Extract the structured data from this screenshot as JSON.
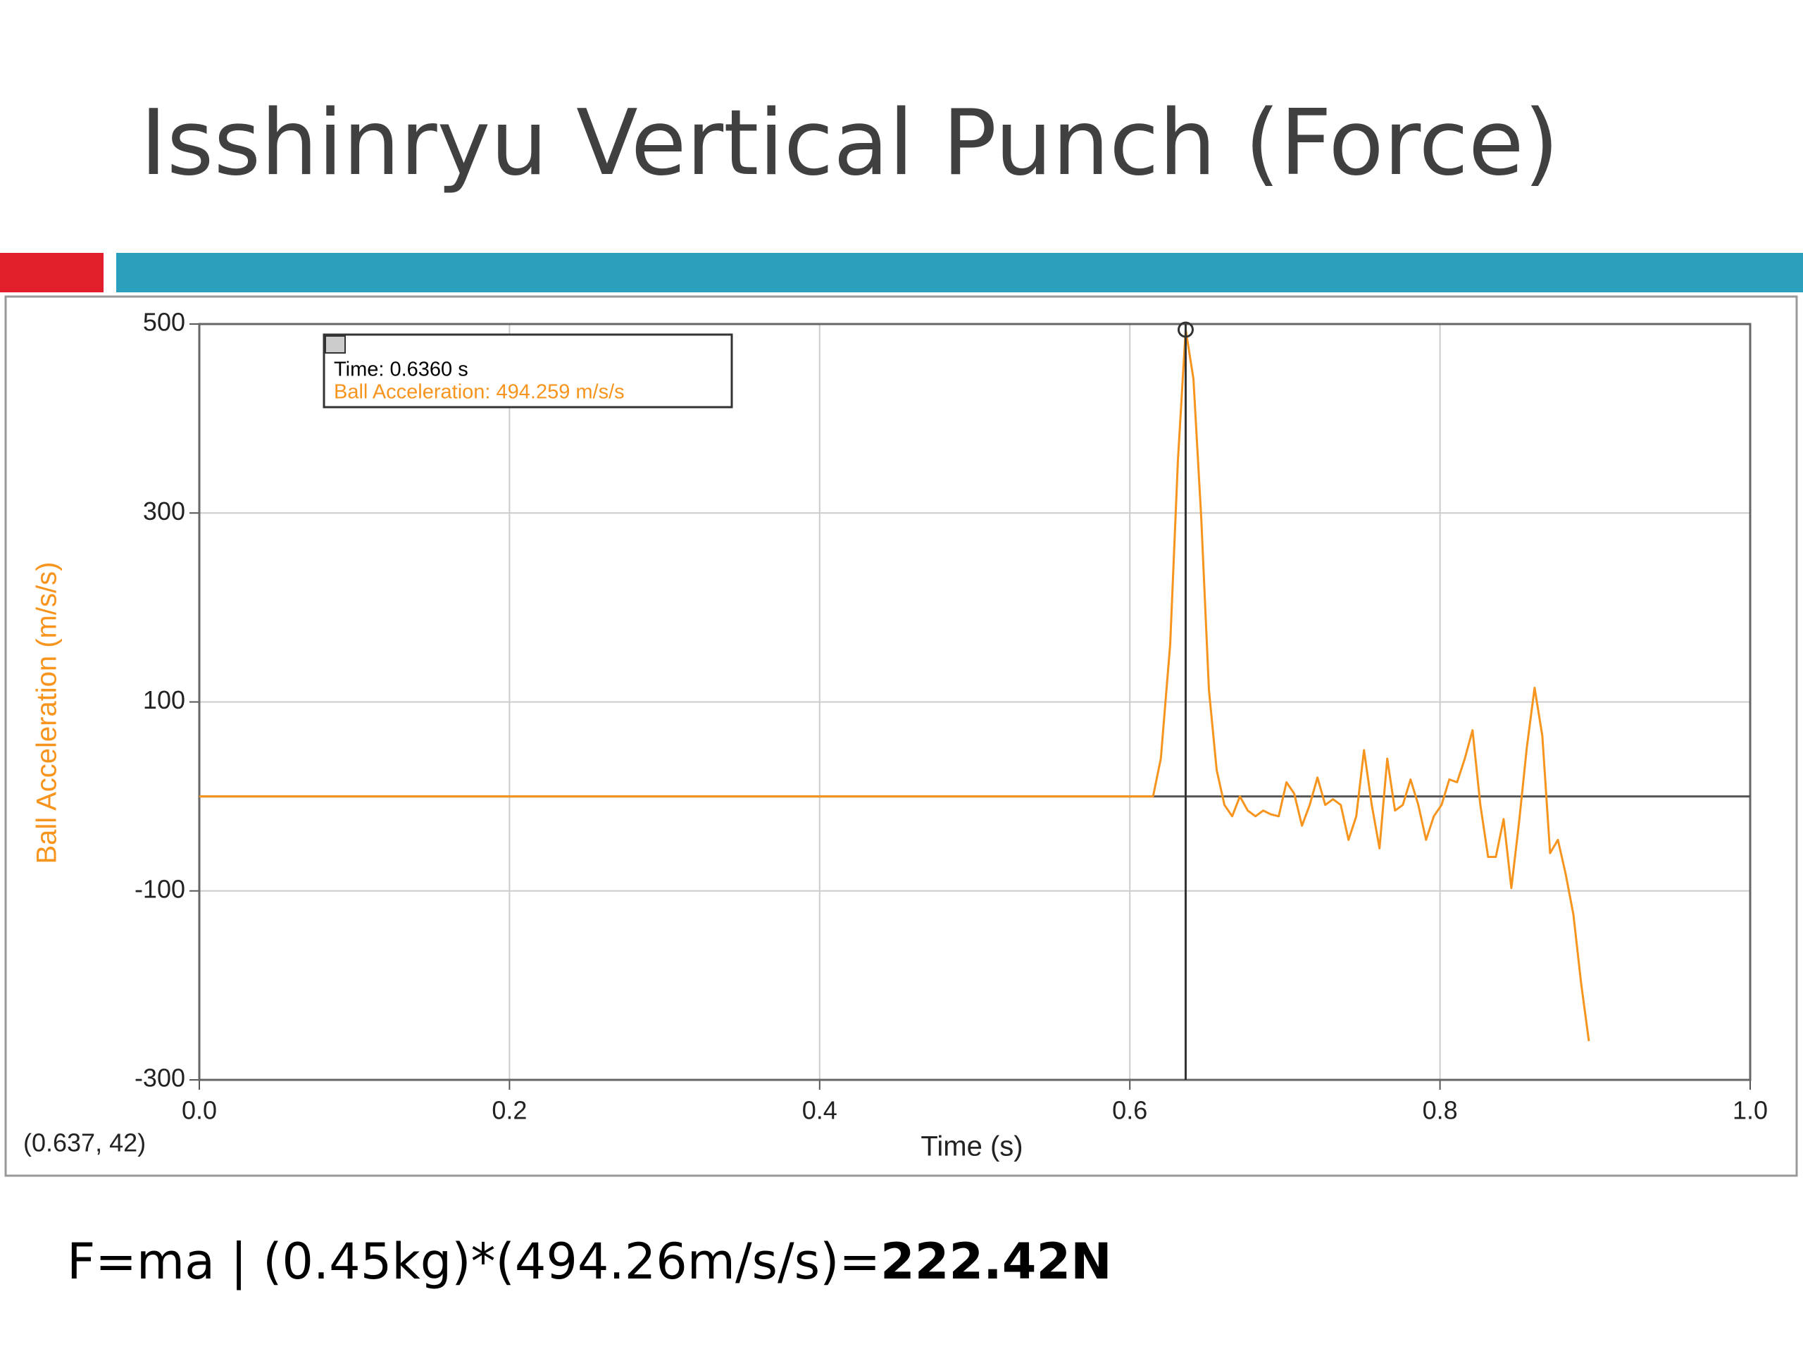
{
  "slide": {
    "title": "Isshinryu Vertical Punch (Force)",
    "formula": "F=ma | (0.45kg)*(494.26m/s/s)=",
    "result": "222.42N"
  },
  "chart_data": {
    "type": "line",
    "y_label": "Ball Acceleration (m/s/s)",
    "x_label": "Time (s)",
    "tooltip_time": "Time: 0.6360 s",
    "tooltip_value": "Ball Acceleration: 494.259 m/s/s",
    "readout": "(0.637, 42)",
    "cursor_x": 0.636,
    "color": "#f7941d",
    "grid": true,
    "xlim": [
      0,
      1
    ],
    "ylim": [
      -300,
      500
    ],
    "xticks": [
      {
        "value": 0,
        "label": "0.0"
      },
      0.2,
      0.4,
      0.6,
      0.8,
      {
        "value": 1,
        "label": "1.0"
      }
    ],
    "yticks": [
      -300,
      -100,
      100,
      300,
      500
    ],
    "x": [
      0,
      0.615,
      0.62,
      0.626,
      0.631,
      0.636,
      0.641,
      0.646,
      0.651,
      0.656,
      0.661,
      0.666,
      0.671,
      0.676,
      0.681,
      0.686,
      0.691,
      0.696,
      0.701,
      0.706,
      0.711,
      0.716,
      0.721,
      0.726,
      0.731,
      0.736,
      0.741,
      0.746,
      0.751,
      0.756,
      0.761,
      0.766,
      0.771,
      0.776,
      0.781,
      0.786,
      0.791,
      0.796,
      0.801,
      0.806,
      0.811,
      0.816,
      0.821,
      0.826,
      0.831,
      0.836,
      0.841,
      0.846,
      0.851,
      0.856,
      0.861,
      0.866,
      0.871,
      0.876,
      0.881,
      0.886,
      0.891,
      0.896
    ],
    "values": [
      0,
      0,
      40,
      161,
      356,
      494.259,
      442,
      296,
      113,
      28,
      -9,
      -21,
      0,
      -15,
      -21,
      -15,
      -19,
      -21,
      15,
      3,
      -31,
      -9,
      20,
      -9,
      -3,
      -9,
      -46,
      -21,
      49,
      -9,
      -55,
      40,
      -15,
      -9,
      18,
      -9,
      -46,
      -21,
      -9,
      18,
      15,
      40,
      70,
      -9,
      -64,
      -64,
      -24,
      -97,
      -27,
      52,
      115,
      64,
      -60,
      -46,
      -82,
      -125,
      -198,
      -259
    ]
  }
}
